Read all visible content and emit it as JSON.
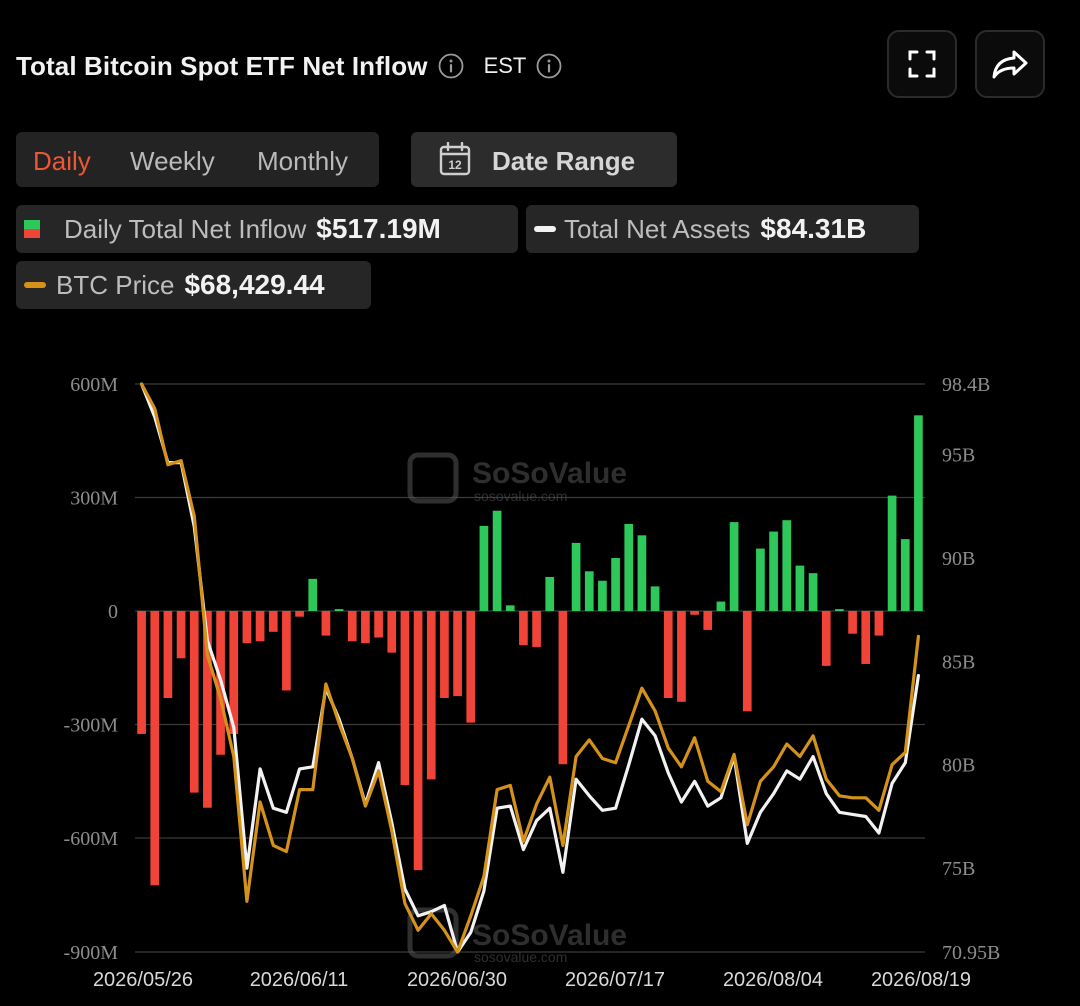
{
  "header": {
    "title": "Total Bitcoin Spot ETF Net Inflow",
    "timezone": "EST",
    "info_icon": "info-icon",
    "fullscreen_icon": "fullscreen-icon",
    "share_icon": "share-icon"
  },
  "tabs": {
    "daily": "Daily",
    "weekly": "Weekly",
    "monthly": "Monthly",
    "active": "daily"
  },
  "date_range": {
    "label": "Date Range",
    "icon": "calendar-icon",
    "icon_text": "12"
  },
  "legend": {
    "inflow": {
      "label": "Daily Total Net Inflow",
      "value": "$517.19M"
    },
    "assets": {
      "label": "Total Net Assets",
      "value": "$84.31B"
    },
    "price": {
      "label": "BTC Price",
      "value": "$68,429.44"
    }
  },
  "watermark": {
    "brand": "SoSoValue",
    "site": "sosovalue.com"
  },
  "colors": {
    "positive": "#2ec85a",
    "negative": "#f04438",
    "assets_line": "#f2f2f2",
    "price_line": "#d4921a",
    "accent": "#ee5634"
  },
  "chart_data": {
    "type": "bar",
    "x_ticks": [
      "2026/05/26",
      "2026/06/11",
      "2026/06/30",
      "2026/07/17",
      "2026/08/04",
      "2026/08/19"
    ],
    "left_ticks": [
      "600M",
      "300M",
      "0",
      "-300M",
      "-600M",
      "-900M"
    ],
    "right_ticks": [
      "98.4B",
      "95B",
      "90B",
      "85B",
      "80B",
      "75B",
      "70.95B"
    ],
    "ylim_left": [
      -900,
      600
    ],
    "ylim_right": [
      70.95,
      98.4
    ],
    "grid": true,
    "series": [
      {
        "name": "Daily Total Net Inflow",
        "unit": "M USD",
        "values": [
          -325,
          -725,
          -230,
          -125,
          -480,
          -520,
          -380,
          -325,
          -85,
          -80,
          -55,
          -210,
          -15,
          85,
          -65,
          5,
          -80,
          -85,
          -70,
          -110,
          -460,
          -685,
          -445,
          -230,
          -225,
          -295,
          225,
          265,
          15,
          -90,
          -95,
          90,
          -405,
          180,
          105,
          80,
          140,
          230,
          200,
          65,
          -230,
          -240,
          -10,
          -50,
          25,
          235,
          -265,
          165,
          210,
          240,
          120,
          100,
          -145,
          5,
          -60,
          -140,
          -65,
          305,
          190,
          517.19
        ]
      },
      {
        "name": "Total Net Assets",
        "unit": "B USD",
        "values": [
          98.4,
          96.8,
          94.6,
          94.6,
          91.5,
          86.0,
          84.1,
          81.8,
          75.0,
          79.8,
          77.9,
          77.7,
          79.8,
          79.9,
          83.7,
          82.2,
          80.3,
          78.1,
          80.1,
          77.2,
          74.0,
          72.7,
          72.9,
          73.2,
          70.95,
          71.9,
          73.9,
          77.9,
          78.0,
          75.9,
          77.3,
          77.9,
          74.8,
          79.3,
          78.5,
          77.8,
          77.9,
          80.0,
          82.2,
          81.4,
          79.6,
          78.2,
          79.2,
          78.0,
          78.4,
          80.4,
          76.2,
          77.7,
          78.6,
          79.7,
          79.3,
          80.4,
          78.6,
          77.7,
          77.6,
          77.5,
          76.7,
          79.1,
          80.1,
          84.31
        ]
      },
      {
        "name": "BTC Price",
        "unit": "USD",
        "values": [
          98.4,
          97.2,
          94.5,
          94.7,
          92.0,
          85.3,
          83.2,
          80.4,
          73.4,
          78.2,
          76.1,
          75.8,
          78.8,
          78.8,
          83.9,
          82.0,
          80.3,
          78.0,
          79.7,
          76.8,
          73.3,
          72.0,
          72.8,
          72.0,
          70.95,
          72.7,
          74.6,
          78.8,
          79.0,
          76.3,
          78.1,
          79.4,
          76.1,
          80.4,
          81.2,
          80.3,
          80.1,
          81.9,
          83.7,
          82.6,
          80.8,
          79.9,
          81.3,
          79.2,
          78.7,
          80.5,
          77.1,
          79.2,
          79.9,
          81.0,
          80.4,
          81.4,
          79.3,
          78.5,
          78.4,
          78.4,
          77.8,
          80.0,
          80.6,
          86.2
        ]
      }
    ]
  }
}
